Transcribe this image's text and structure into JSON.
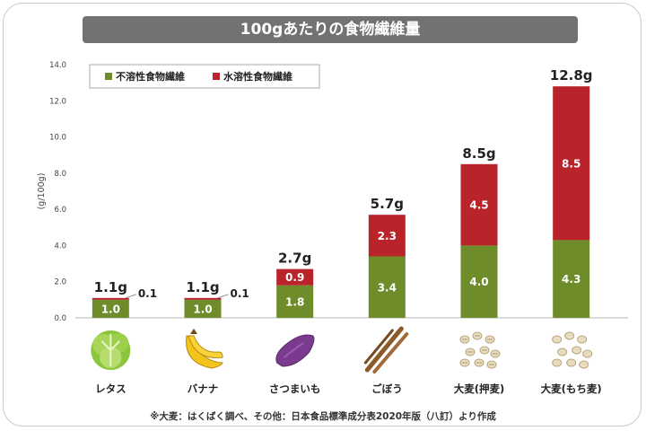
{
  "chart_data": {
    "type": "bar",
    "stacked": true,
    "title": "100gあたりの食物繊維量",
    "ylabel": "(g/100g)",
    "ylim": [
      0,
      14
    ],
    "yticks": [
      "0.0",
      "2.0",
      "4.0",
      "6.0",
      "8.0",
      "10.0",
      "12.0",
      "14.0"
    ],
    "legend_position": "top-left",
    "categories": [
      "レタス",
      "バナナ",
      "さつまいも",
      "ごぼう",
      "大麦(押麦)",
      "大麦(もち麦)"
    ],
    "totals": [
      "1.1g",
      "1.1g",
      "2.7g",
      "5.7g",
      "8.5g",
      "12.8g"
    ],
    "series": [
      {
        "name": "不溶性食物繊維",
        "color": "#6e8c2a",
        "values": [
          1.0,
          1.0,
          1.8,
          3.4,
          4.0,
          4.3
        ],
        "labels": [
          "1.0",
          "1.0",
          "1.8",
          "3.4",
          "4.0",
          "4.3"
        ]
      },
      {
        "name": "水溶性食物繊維",
        "color": "#b8242a",
        "values": [
          0.1,
          0.1,
          0.9,
          2.3,
          4.5,
          8.5
        ],
        "labels": [
          "0.1",
          "0.1",
          "0.9",
          "2.3",
          "4.5",
          "8.5"
        ]
      }
    ],
    "icons": [
      "lettuce-icon",
      "banana-icon",
      "sweet-potato-icon",
      "burdock-icon",
      "pressed-barley-icon",
      "mochi-barley-icon"
    ],
    "footnote": "※大麦：はくばく調べ、その他：日本食品標準成分表2020年版（八訂）より作成"
  }
}
